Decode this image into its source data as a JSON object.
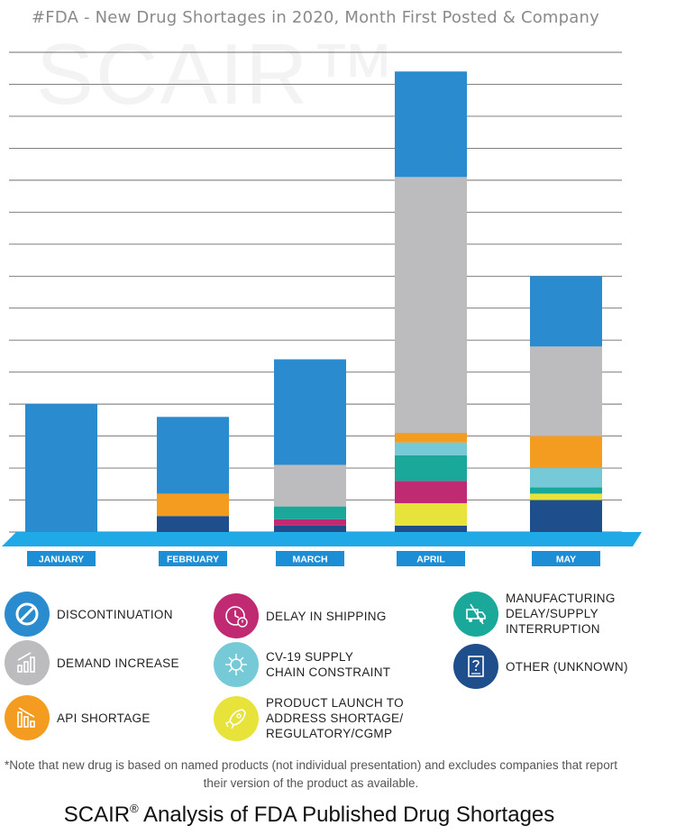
{
  "title": "#FDA - New Drug Shortages in 2020, Month First Posted & Company",
  "watermark": "SCAIR™",
  "chart_data": {
    "type": "bar",
    "stacked": true,
    "categories": [
      "JANUARY",
      "FEBRUARY",
      "MARCH",
      "APRIL",
      "MAY"
    ],
    "ylim": [
      0,
      15
    ],
    "y_ticks": 15,
    "grid": true,
    "series": [
      {
        "name": "OTHER (UNKNOWN)",
        "color": "#1f4e8c",
        "values": [
          0,
          0.5,
          0.2,
          0.2,
          1
        ]
      },
      {
        "name": "PRODUCT LAUNCH TO ADDRESS SHORTAGE/ REGULATORY/cGMP",
        "color": "#e8e33a",
        "values": [
          0,
          0,
          0,
          0.7,
          0.2
        ]
      },
      {
        "name": "DELAY IN SHIPPING",
        "color": "#bf2a73",
        "values": [
          0,
          0,
          0.2,
          0.7,
          0
        ]
      },
      {
        "name": "MANUFACTURING DELAY/SUPPLY INTERRUPTION",
        "color": "#1aa89a",
        "values": [
          0,
          0,
          0.4,
          0.8,
          0.2
        ]
      },
      {
        "name": "CV-19 SUPPLY CHAIN CONSTRAINT",
        "color": "#76cad8",
        "values": [
          0,
          0,
          0,
          0.4,
          0.6
        ]
      },
      {
        "name": "API SHORTAGE",
        "color": "#f39c1f",
        "values": [
          0,
          0.7,
          0,
          0.3,
          1
        ]
      },
      {
        "name": "DEMAND INCREASE",
        "color": "#bcbcbf",
        "values": [
          0,
          0,
          1.3,
          8,
          2.8
        ]
      },
      {
        "name": "DISCONTINUATION",
        "color": "#2a8ccf",
        "values": [
          4,
          2.4,
          3.3,
          3.3,
          2.2
        ]
      }
    ]
  },
  "legend": [
    {
      "label": "DISCONTINUATION",
      "color": "#2a8ccf",
      "icon": "ban-icon"
    },
    {
      "label": "DEMAND INCREASE",
      "color": "#bcbcbf",
      "icon": "bar-chart-up-icon"
    },
    {
      "label": "API SHORTAGE",
      "color": "#f39c1f",
      "icon": "bar-chart-down-icon"
    },
    {
      "label": "DELAY IN SHIPPING",
      "color": "#bf2a73",
      "icon": "clock-alert-icon"
    },
    {
      "label": "CV-19 SUPPLY\nCHAIN CONSTRAINT",
      "color": "#76cad8",
      "icon": "virus-icon"
    },
    {
      "label": "PRODUCT LAUNCH TO\nADDRESS SHORTAGE/\nREGULATORY/cGMP",
      "color": "#e8e33a",
      "icon": "rocket-icon"
    },
    {
      "label": "MANUFACTURING\nDELAY/SUPPLY\nINTERRUPTION",
      "color": "#1aa89a",
      "icon": "truck-broken-icon"
    },
    {
      "label": "OTHER (UNKNOWN)",
      "color": "#1f4e8c",
      "icon": "document-question-icon"
    }
  ],
  "note": "*Note that new drug is based on named products (not individual presentation) and excludes companies that report their version of the product as available.",
  "footer": {
    "text": "SCAIR",
    "reg": "®",
    "text2": " Analysis of FDA Published Drug Shortages"
  }
}
